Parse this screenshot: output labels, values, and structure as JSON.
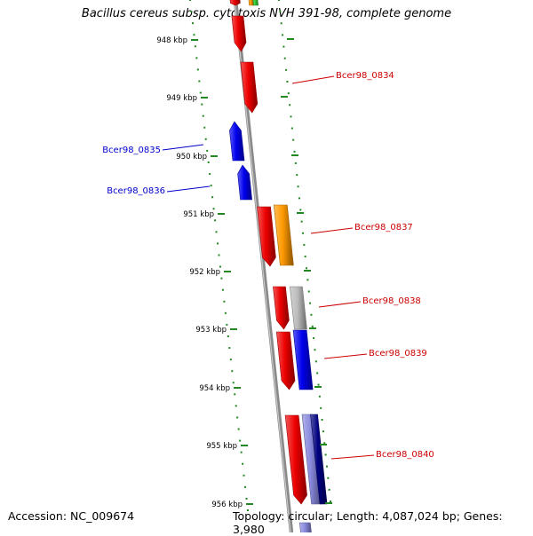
{
  "title": "Bacillus cereus subsp. cytotoxis NVH 391-98, complete genome",
  "footer": {
    "accession": "Accession: NC_009674",
    "topology": "Topology: circular; Length: 4,087,024 bp; Genes: 3,980"
  },
  "colors": {
    "red": "#ee0000",
    "blue": "#0000ee",
    "orange": "#ff9900",
    "gray": "#bbbbbb",
    "navy": "#000080",
    "lilac": "#8888dd",
    "tick": "#228822",
    "backbone": "#8a8a8a",
    "label_red": "#cc0000",
    "label_blue": "#0000cc"
  },
  "ticks": [
    {
      "label": "948 kbp"
    },
    {
      "label": "949 kbp"
    },
    {
      "label": "950 kbp"
    },
    {
      "label": "951 kbp"
    },
    {
      "label": "952 kbp"
    },
    {
      "label": "953 kbp"
    },
    {
      "label": "954 kbp"
    },
    {
      "label": "955 kbp"
    },
    {
      "label": "956 kbp"
    }
  ],
  "gene_labels": [
    {
      "name": "Bcer98_0834",
      "side": "right",
      "color": "red"
    },
    {
      "name": "Bcer98_0835",
      "side": "left",
      "color": "blue"
    },
    {
      "name": "Bcer98_0836",
      "side": "left",
      "color": "blue"
    },
    {
      "name": "Bcer98_0837",
      "side": "right",
      "color": "red"
    },
    {
      "name": "Bcer98_0838",
      "side": "right",
      "color": "red"
    },
    {
      "name": "Bcer98_0839",
      "side": "right",
      "color": "red"
    },
    {
      "name": "Bcer98_0840",
      "side": "right",
      "color": "red"
    }
  ]
}
